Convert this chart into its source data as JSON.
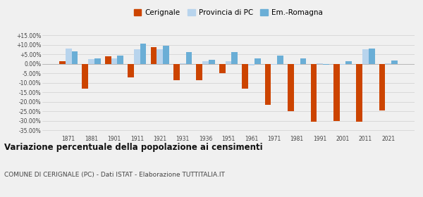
{
  "years": [
    1871,
    1881,
    1901,
    1911,
    1921,
    1931,
    1936,
    1951,
    1961,
    1971,
    1981,
    1991,
    2001,
    2011,
    2021
  ],
  "cerignale": [
    1.5,
    -13.0,
    3.8,
    -7.0,
    8.8,
    -8.5,
    -8.5,
    -4.8,
    -13.0,
    -21.5,
    -24.8,
    -30.5,
    -30.0,
    -30.5,
    -24.5
  ],
  "provincia_pc": [
    8.0,
    2.5,
    3.0,
    7.5,
    7.5,
    0.2,
    1.5,
    1.5,
    -1.0,
    -0.5,
    -0.5,
    0.2,
    -0.5,
    7.5,
    0.2
  ],
  "em_romagna": [
    6.5,
    2.8,
    4.5,
    10.5,
    9.5,
    6.0,
    2.0,
    6.0,
    3.0,
    4.5,
    2.8,
    -0.5,
    1.2,
    8.0,
    1.8
  ],
  "cerignale_color": "#cc4400",
  "provincia_color": "#b8d4ed",
  "em_romagna_color": "#6aaed6",
  "title": "Variazione percentuale della popolazione ai censimenti",
  "subtitle": "COMUNE DI CERIGNALE (PC) - Dati ISTAT - Elaborazione TUTTITALIA.IT",
  "legend_labels": [
    "Cerignale",
    "Provincia di PC",
    "Em.-Romagna"
  ],
  "ylim": [
    -37,
    17
  ],
  "yticks": [
    -35,
    -30,
    -25,
    -20,
    -15,
    -10,
    -5,
    0,
    5,
    10,
    15
  ],
  "background_color": "#f0f0f0",
  "grid_color": "#d0d0d0"
}
